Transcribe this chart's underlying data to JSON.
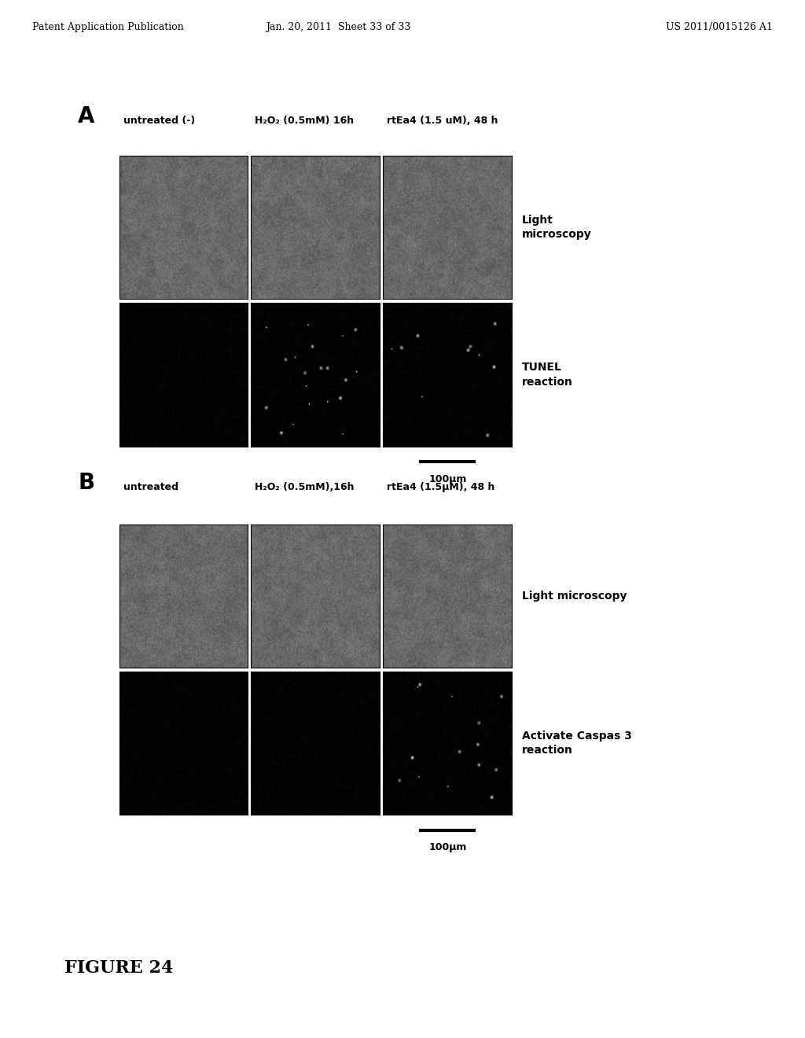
{
  "header_left": "Patent Application Publication",
  "header_mid": "Jan. 20, 2011  Sheet 33 of 33",
  "header_right": "US 2011/0015126 A1",
  "section_A_label": "A",
  "section_B_label": "B",
  "col_labels_A": [
    "untreated (-)",
    "H₂O₂ (0.5mM) 16h",
    "rtEa4 (1.5 uM), 48 h"
  ],
  "col_labels_B": [
    "untreated",
    "H₂O₂ (0.5mM),16h",
    "rtEa4 (1.5μM), 48 h"
  ],
  "row_label_A1": "Light\nmicroscopy",
  "row_label_A2": "TUNEL\nreaction",
  "row_label_B1": "Light microscopy",
  "row_label_B2": "Activate Caspas 3\nreaction",
  "scale_bar_text": "100μm",
  "figure_label": "FIGURE 24",
  "bg_color": "#ffffff",
  "text_color": "#000000",
  "header_fontsize": 9,
  "col_label_fontsize": 9,
  "row_label_fontsize": 10,
  "figure_label_fontsize": 16
}
